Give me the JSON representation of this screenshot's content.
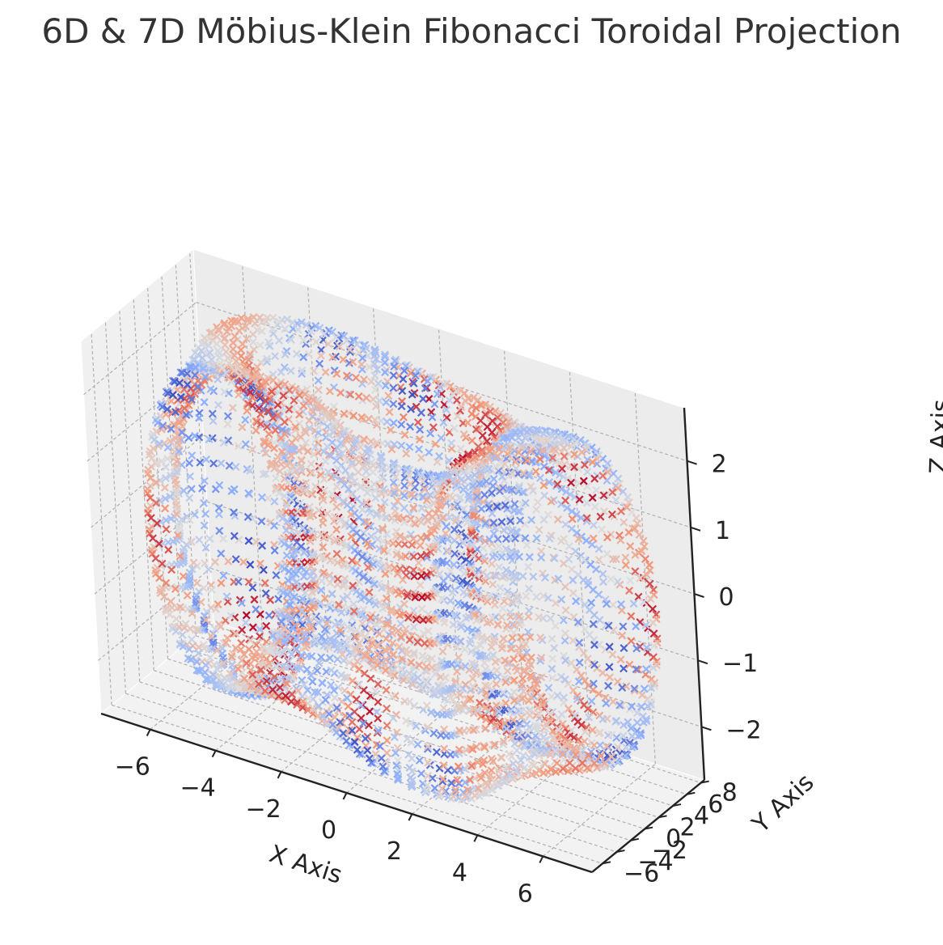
{
  "chart_data": {
    "type": "scatter",
    "projection": "3d",
    "title": "6D & 7D Möbius-Klein Fibonacci Toroidal Projection",
    "xlabel": "X Axis",
    "ylabel": "Y Axis",
    "zlabel": "Z Axis",
    "xlim": [
      -7.5,
      7.5
    ],
    "ylim": [
      -7.5,
      8.5
    ],
    "zlim": [
      -2.8,
      2.8
    ],
    "x_ticks": [
      "−6",
      "−4",
      "−2",
      "0",
      "2",
      "4",
      "6"
    ],
    "y_ticks": [
      "−6",
      "−4",
      "−2",
      "0",
      "2",
      "4",
      "6",
      "8"
    ],
    "z_ticks": [
      "−2",
      "−1",
      "0",
      "1",
      "2"
    ],
    "marker": "x",
    "colormap": "coolwarm",
    "grid": true,
    "pane_color": "#f2f2f2",
    "grid_color": "#b0b0b0"
  }
}
